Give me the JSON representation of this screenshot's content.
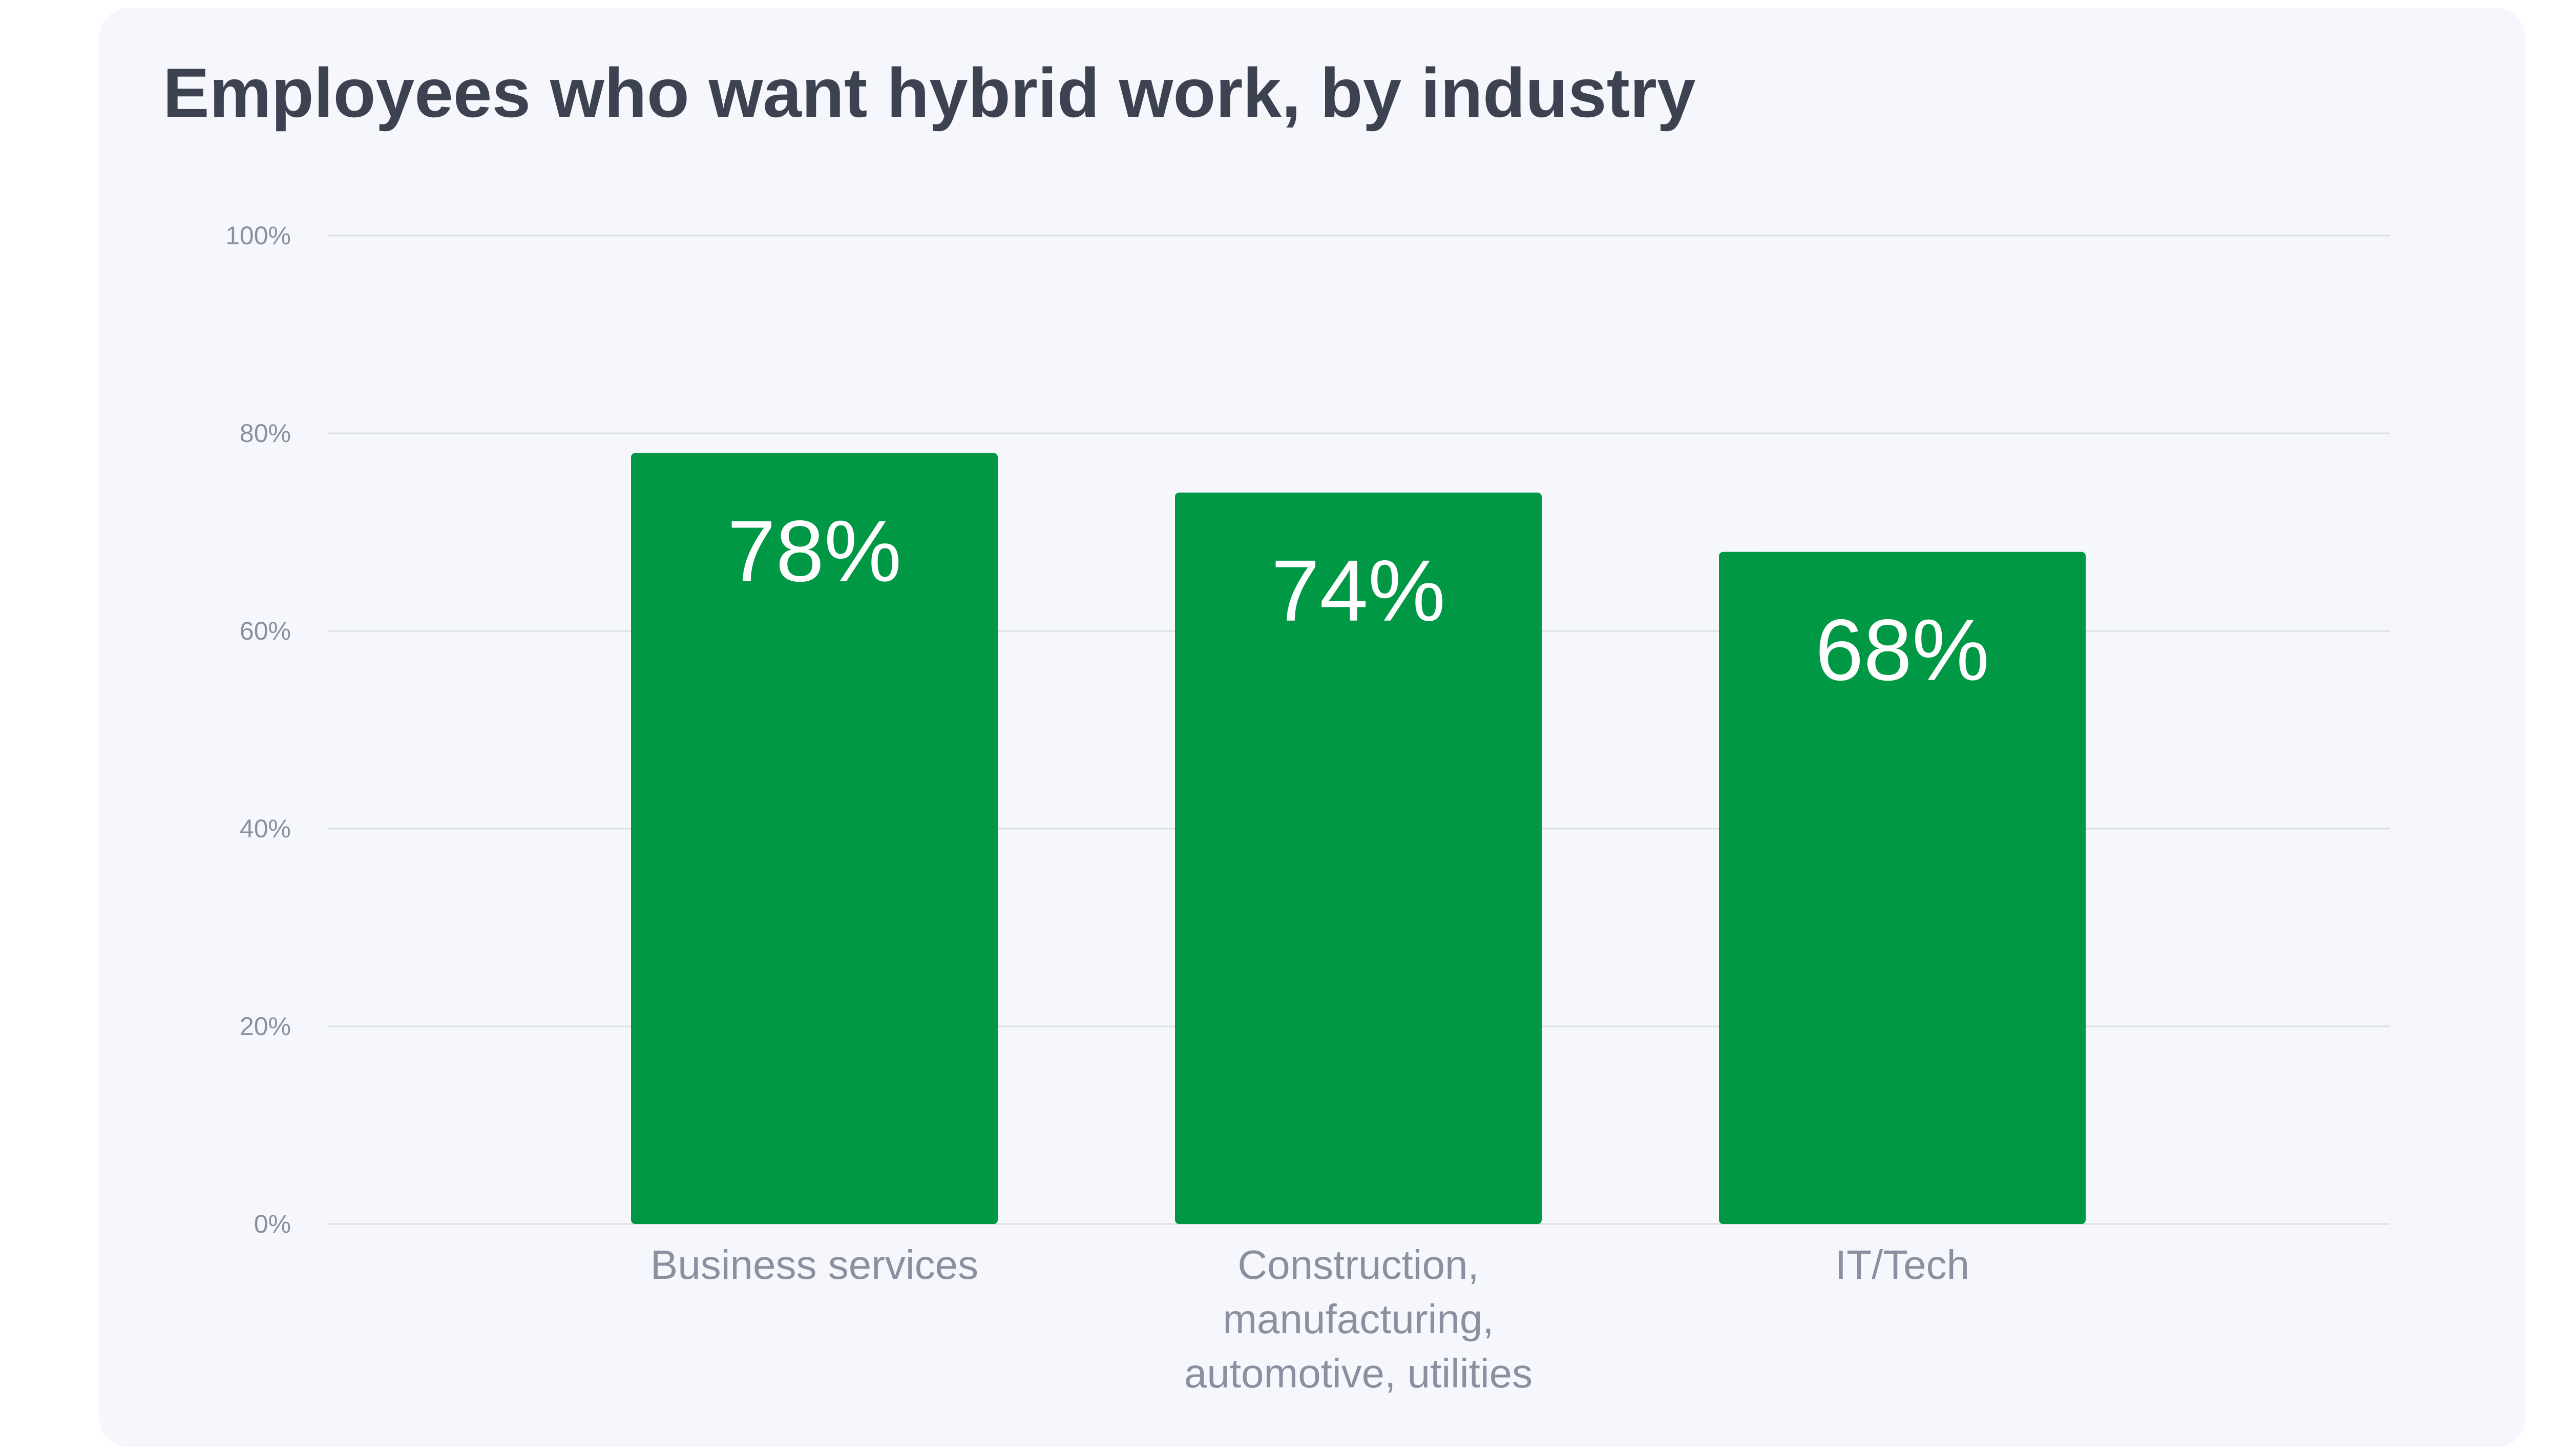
{
  "title": "Employees who want hybrid work, by industry",
  "colors": {
    "background": "#f5f7fc",
    "bar": "#009845",
    "title": "#3d4251",
    "axis_text": "#8b90a0",
    "grid": "#dcdfe6"
  },
  "chart_data": {
    "type": "bar",
    "title": "Employees who want hybrid work, by industry",
    "categories": [
      [
        "Business services"
      ],
      [
        "Construction,",
        "manufacturing,",
        "automotive, utilities"
      ],
      [
        "IT/Tech"
      ]
    ],
    "values": [
      78,
      74,
      68
    ],
    "value_labels": [
      "78%",
      "74%",
      "68%"
    ],
    "ylim": [
      0,
      100
    ],
    "yticks": [
      0,
      20,
      40,
      60,
      80,
      100
    ],
    "ytick_labels": [
      "0%",
      "20%",
      "40%",
      "60%",
      "80%",
      "100%"
    ],
    "xlabel": "",
    "ylabel": "",
    "grid": true,
    "legend": false
  }
}
